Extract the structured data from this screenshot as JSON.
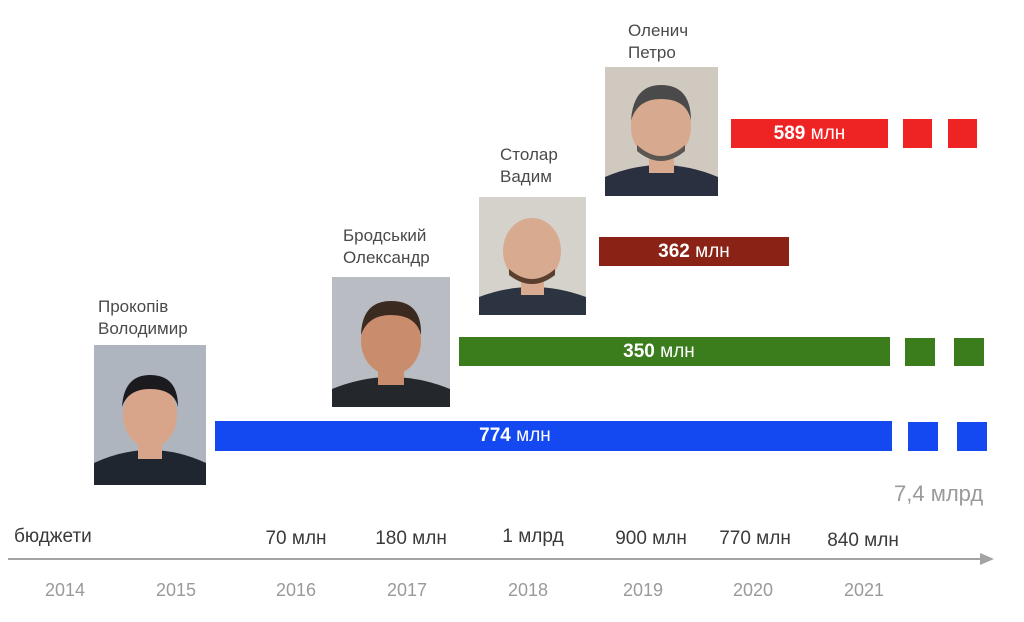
{
  "people": [
    {
      "name": "Прокопів\nВолодимир",
      "suit": "#1f2630",
      "skin": "#d9a58a",
      "bg": "#b9bec6"
    },
    {
      "name": "Бродський\nОлександр",
      "suit": "#24272c",
      "skin": "#c98c6c",
      "bg": "#c3c6cb"
    },
    {
      "name": "Столар\nВадим",
      "suit": "#2c3441",
      "skin": "#d8aa90",
      "bg": "#d5d2cc"
    },
    {
      "name": "Оленич\nПетро",
      "suit": "#2a3040",
      "skin": "#d7a98f",
      "bg": "#cfc9c0"
    }
  ],
  "bars": [
    {
      "value": "589",
      "unit": "млн",
      "color": "#ee2424"
    },
    {
      "value": "362",
      "unit": "млн",
      "color": "#8a2316"
    },
    {
      "value": "350",
      "unit": "млн",
      "color": "#3b7d1c"
    },
    {
      "value": "774",
      "unit": "млн",
      "color": "#1448f0"
    }
  ],
  "budgets_caption": "бюджети",
  "budgets": [
    "70 млн",
    "180 млн",
    "1 млрд",
    "900 млн",
    "770 млн",
    "840 млн"
  ],
  "total": "7,4 млрд",
  "years": [
    "2014",
    "2015",
    "2016",
    "2017",
    "2018",
    "2019",
    "2020",
    "2021"
  ]
}
